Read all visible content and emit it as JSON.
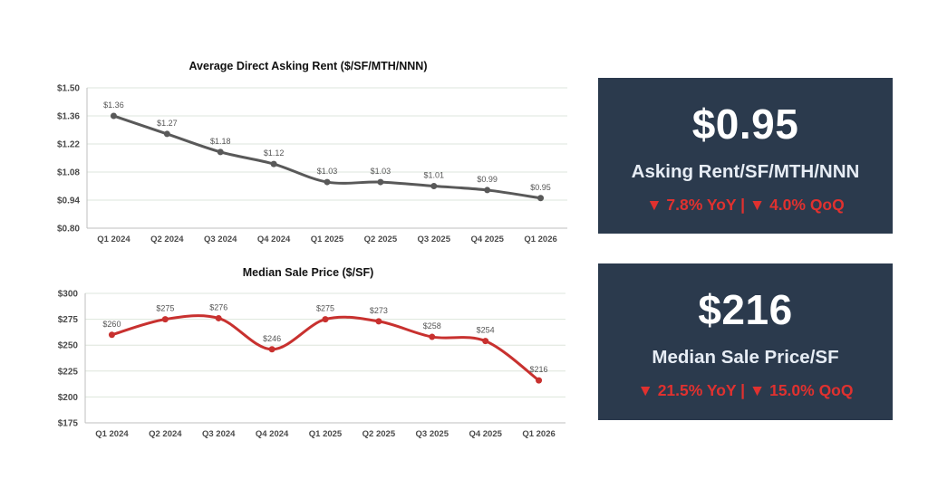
{
  "chart_data": [
    {
      "type": "line",
      "title": "Average Direct Asking Rent ($/SF/MTH/NNN)",
      "categories": [
        "Q1 2024",
        "Q2 2024",
        "Q3 2024",
        "Q4 2024",
        "Q1 2025",
        "Q2 2025",
        "Q3 2025",
        "Q4 2025",
        "Q1 2026"
      ],
      "values": [
        1.36,
        1.27,
        1.18,
        1.12,
        1.03,
        1.03,
        1.01,
        0.99,
        0.95
      ],
      "data_labels": [
        "$1.36",
        "$1.27",
        "$1.18",
        "$1.12",
        "$1.03",
        "$1.03",
        "$1.01",
        "$0.99",
        "$0.95"
      ],
      "yticks": [
        "$0.80",
        "$0.94",
        "$1.08",
        "$1.22",
        "$1.36",
        "$1.50"
      ],
      "ylim": [
        0.8,
        1.5
      ],
      "color": "#595959",
      "grid": true
    },
    {
      "type": "line",
      "title": "Median Sale Price ($/SF)",
      "categories": [
        "Q1 2024",
        "Q2 2024",
        "Q3 2024",
        "Q4 2024",
        "Q1 2025",
        "Q2 2025",
        "Q3 2025",
        "Q4 2025",
        "Q1 2026"
      ],
      "values": [
        260,
        275,
        276,
        246,
        275,
        273,
        258,
        254,
        216
      ],
      "data_labels": [
        "$260",
        "$275",
        "$276",
        "$246",
        "$275",
        "$273",
        "$258",
        "$254",
        "$216"
      ],
      "yticks": [
        "$175",
        "$200",
        "$225",
        "$250",
        "$275",
        "$300"
      ],
      "ylim": [
        175,
        300
      ],
      "color": "#c8312f",
      "grid": true
    }
  ],
  "kpis": [
    {
      "value": "$0.95",
      "label": "Asking Rent/SF/MTH/NNN",
      "change": "▼ 7.8% YoY | ▼ 4.0% QoQ"
    },
    {
      "value": "$216",
      "label": "Median Sale Price/SF",
      "change": "▼ 21.5% YoY | ▼ 15.0% QoQ"
    }
  ],
  "colors": {
    "kpi_bg": "#2b3a4d",
    "down": "#e0312f"
  }
}
